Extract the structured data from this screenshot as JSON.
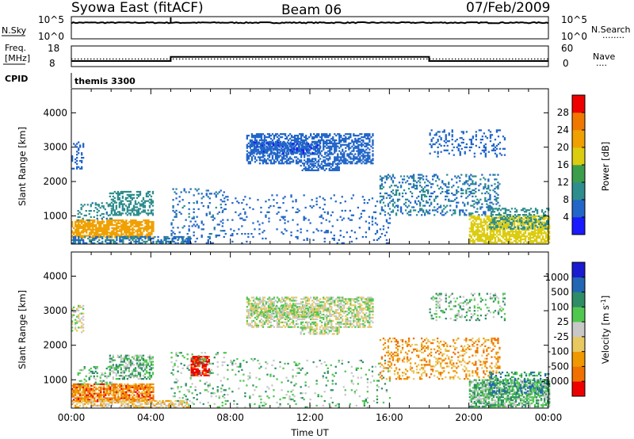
{
  "header": {
    "title": "Syowa East (fitACF)",
    "beam": "Beam 06",
    "date": "07/Feb/2009"
  },
  "nsky_panel": {
    "left_label": "N.Sky",
    "left_ticks": [
      "10^5",
      "10^0"
    ],
    "right_label": "N.Search",
    "right_ticks": [
      "10^5",
      "10^0"
    ],
    "right_legend": "........",
    "level": 8500,
    "spike_time_hr": 5.0
  },
  "freq_panel": {
    "left_label_1": "Freq.",
    "left_label_2": "[MHz]",
    "left_ticks": [
      "18",
      "8"
    ],
    "right_label": "Nave",
    "right_ticks": [
      "60",
      "0"
    ],
    "right_legend": "....",
    "segments_mhz": [
      {
        "start": 0,
        "end": 5,
        "value": 10.0
      },
      {
        "start": 5,
        "end": 18,
        "value": 12.6
      },
      {
        "start": 18,
        "end": 24,
        "value": 10.0
      }
    ],
    "nave_level": 22
  },
  "cpid_panel": {
    "label": "CPID",
    "mode": "themis 3300"
  },
  "chart_data": [
    {
      "type": "heatmap",
      "name": "power",
      "ylabel": "Slant Range [km]",
      "ylim": [
        180,
        4700
      ],
      "yticks": [
        "1000",
        "2000",
        "3000",
        "4000"
      ],
      "xlim": [
        0,
        24
      ],
      "colorbar_label": "Power [dB]",
      "colorbar_ticks": [
        "4",
        "8",
        "12",
        "16",
        "20",
        "24",
        "28"
      ],
      "colorbar_levels": [
        0,
        4,
        8,
        12,
        16,
        20,
        24,
        28,
        32
      ],
      "colorbar_colors": [
        "#1a1aff",
        "#2266c8",
        "#2e8d8d",
        "#3c9e4c",
        "#dccc10",
        "#f0a000",
        "#f07800",
        "#ee0000"
      ],
      "regions": [
        {
          "t0": 0.0,
          "t1": 0.6,
          "r0": 2350,
          "r1": 3150,
          "d": 0.35,
          "v": 6
        },
        {
          "t0": 0.0,
          "t1": 4.1,
          "r0": 350,
          "r1": 880,
          "d": 0.75,
          "v": 22
        },
        {
          "t0": 0.3,
          "t1": 2.0,
          "r0": 850,
          "r1": 1350,
          "d": 0.25,
          "v": 9
        },
        {
          "t0": 1.9,
          "t1": 4.1,
          "r0": 1000,
          "r1": 1700,
          "d": 0.5,
          "v": 10
        },
        {
          "t0": 0.0,
          "t1": 6.0,
          "r0": 180,
          "r1": 380,
          "d": 0.5,
          "v": 8
        },
        {
          "t0": 5.0,
          "t1": 7.8,
          "r0": 180,
          "r1": 1800,
          "d": 0.12,
          "v": 7
        },
        {
          "t0": 8.8,
          "t1": 15.2,
          "r0": 2500,
          "r1": 3400,
          "d": 0.55,
          "v": 6
        },
        {
          "t0": 9.0,
          "t1": 12.5,
          "r0": 2800,
          "r1": 3150,
          "d": 0.6,
          "v": 5
        },
        {
          "t0": 11.5,
          "t1": 13.5,
          "r0": 2300,
          "r1": 2500,
          "d": 0.6,
          "v": 6
        },
        {
          "t0": 7.5,
          "t1": 16.0,
          "r0": 180,
          "r1": 1600,
          "d": 0.08,
          "v": 6
        },
        {
          "t0": 15.5,
          "t1": 21.5,
          "r0": 1000,
          "r1": 2200,
          "d": 0.25,
          "v": 8
        },
        {
          "t0": 18.0,
          "t1": 21.8,
          "r0": 2700,
          "r1": 3500,
          "d": 0.2,
          "v": 6
        },
        {
          "t0": 20.0,
          "t1": 24.0,
          "r0": 200,
          "r1": 1000,
          "d": 0.7,
          "v": 18
        },
        {
          "t0": 21.0,
          "t1": 24.0,
          "r0": 600,
          "r1": 1200,
          "d": 0.35,
          "v": 10
        }
      ]
    },
    {
      "type": "heatmap",
      "name": "velocity",
      "ylabel": "Slant Range [km]",
      "ylim": [
        180,
        4700
      ],
      "yticks": [
        "1000",
        "2000",
        "3000",
        "4000"
      ],
      "xlim": [
        0,
        24
      ],
      "xticks": [
        "00:00",
        "04:00",
        "08:00",
        "12:00",
        "16:00",
        "20:00",
        "00:00"
      ],
      "xlabel": "Time UT",
      "colorbar_label": "Velocity [m s^-1]",
      "colorbar_ticks": [
        "-1000",
        "-500",
        "-100",
        "-25",
        "25",
        "100",
        "500",
        "1000"
      ],
      "colorbar_colors": [
        "#ee0000",
        "#f07000",
        "#f09800",
        "#e8c860",
        "#c8c8c8",
        "#50c850",
        "#2e8d66",
        "#2266b4",
        "#1a1ad0"
      ],
      "regions": [
        {
          "t0": 0.0,
          "t1": 0.6,
          "r0": 2350,
          "r1": 3150,
          "d": 0.35,
          "v": 4
        },
        {
          "t0": 0.0,
          "t1": 4.1,
          "r0": 350,
          "r1": 880,
          "d": 0.75,
          "v": 1.5
        },
        {
          "t0": 0.3,
          "t1": 2.0,
          "r0": 850,
          "r1": 1350,
          "d": 0.25,
          "v": 5
        },
        {
          "t0": 1.9,
          "t1": 4.1,
          "r0": 1000,
          "r1": 1700,
          "d": 0.5,
          "v": 5
        },
        {
          "t0": 0.0,
          "t1": 6.0,
          "r0": 180,
          "r1": 380,
          "d": 0.5,
          "v": 3
        },
        {
          "t0": 6.0,
          "t1": 6.9,
          "r0": 1100,
          "r1": 1650,
          "d": 0.75,
          "v": 0
        },
        {
          "t0": 5.0,
          "t1": 7.8,
          "r0": 180,
          "r1": 1800,
          "d": 0.12,
          "v": 5
        },
        {
          "t0": 8.8,
          "t1": 15.2,
          "r0": 2500,
          "r1": 3400,
          "d": 0.55,
          "v": 4
        },
        {
          "t0": 9.0,
          "t1": 12.5,
          "r0": 2800,
          "r1": 3150,
          "d": 0.6,
          "v": 4
        },
        {
          "t0": 11.5,
          "t1": 13.5,
          "r0": 2300,
          "r1": 2500,
          "d": 0.6,
          "v": 4
        },
        {
          "t0": 7.5,
          "t1": 16.0,
          "r0": 180,
          "r1": 1600,
          "d": 0.08,
          "v": 5
        },
        {
          "t0": 15.5,
          "t1": 21.5,
          "r0": 1000,
          "r1": 2200,
          "d": 0.25,
          "v": 2
        },
        {
          "t0": 18.0,
          "t1": 21.8,
          "r0": 2700,
          "r1": 3500,
          "d": 0.2,
          "v": 5
        },
        {
          "t0": 20.0,
          "t1": 24.0,
          "r0": 200,
          "r1": 1000,
          "d": 0.7,
          "v": 5
        },
        {
          "t0": 21.0,
          "t1": 24.0,
          "r0": 600,
          "r1": 1200,
          "d": 0.35,
          "v": 6
        }
      ]
    }
  ]
}
